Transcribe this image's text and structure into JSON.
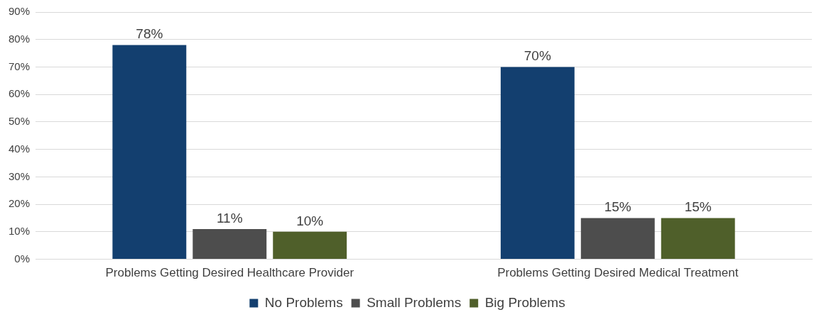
{
  "chart_data": {
    "type": "bar",
    "categories": [
      "Problems Getting Desired Healthcare Provider",
      "Problems Getting Desired Medical Treatment"
    ],
    "series": [
      {
        "name": "No Problems",
        "color": "#133f6f",
        "values": [
          78,
          70
        ],
        "value_labels": [
          "78%",
          "70%"
        ]
      },
      {
        "name": "Small Problems",
        "color": "#4d4d4d",
        "values": [
          11,
          15
        ],
        "value_labels": [
          "11%",
          "15%"
        ]
      },
      {
        "name": "Big Problems",
        "color": "#4f5f2a",
        "values": [
          10,
          15
        ],
        "value_labels": [
          "10%",
          "15%"
        ]
      }
    ],
    "ylim": [
      0,
      90
    ],
    "yticks": [
      {
        "value": 0,
        "label": "0%"
      },
      {
        "value": 10,
        "label": "10%"
      },
      {
        "value": 20,
        "label": "20%"
      },
      {
        "value": 30,
        "label": "30%"
      },
      {
        "value": 40,
        "label": "40%"
      },
      {
        "value": 50,
        "label": "50%"
      },
      {
        "value": 60,
        "label": "60%"
      },
      {
        "value": 70,
        "label": "70%"
      },
      {
        "value": 80,
        "label": "80%"
      },
      {
        "value": 90,
        "label": "90%"
      }
    ],
    "grid": "y",
    "legend": "bottom"
  }
}
